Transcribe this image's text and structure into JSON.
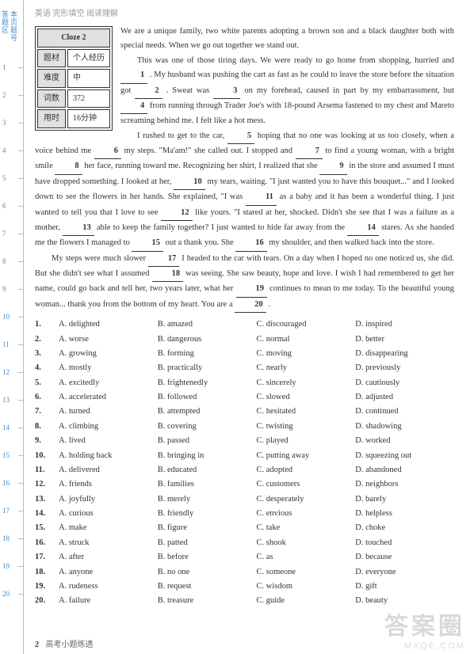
{
  "header": "英语 完形填空 阅读理解",
  "side": {
    "col1": {
      "a": "答",
      "b": "题",
      "c": "区"
    },
    "col2": {
      "a": "本",
      "b": "页",
      "c": "题",
      "d": "号"
    }
  },
  "ticks": [
    "1",
    "2",
    "3",
    "4",
    "5",
    "6",
    "7",
    "8",
    "9",
    "10",
    "11",
    "12",
    "13",
    "14",
    "15",
    "16",
    "17",
    "18",
    "19",
    "20"
  ],
  "info": {
    "title": "Cloze 2",
    "r1a": "题材",
    "r1b": "个人经历",
    "r2a": "难度",
    "r2b": "中",
    "r3a": "词数",
    "r3b": "372",
    "r4a": "用时",
    "r4b": "16分钟"
  },
  "passage": {
    "p1a": "We are a unique family, two white parents adopting a brown son and a black daughter both with special needs. When we go out together we stand out.",
    "p2a": "This was one of those tiring days. We were ready to go home from shopping, hurried and ",
    "p2b": " . My husband was pushing the cart as fast as he could to leave the store before the situation got ",
    "p2c": " . Sweat was ",
    "p2d": "  on my forehead, caused in part by my embarrassment, but ",
    "p2e": "  from running through Trader Joe's with 18-pound Arsema fastened to my chest and Mareto screaming behind me. I felt like a hot mess.",
    "p3a": "I rushed to get to the car, ",
    "p3b": "  hoping that no one was looking at us too closely, when a voice behind me ",
    "p3c": "  my steps. \"Ma'am!\" she called out. I stopped and ",
    "p3d": "  to find a young woman, with a bright smile ",
    "p3e": "  her face, running toward me. Recognizing her shirt, I realized that she ",
    "p3f": "  in the store and assumed I must have dropped something. I looked at her, ",
    "p3g": "  my tears, waiting. \"I just wanted you to have this bouquet...\" and I looked down to see the flowers in her hands. She explained, \"I was ",
    "p3h": "  as a baby and it has been a wonderful thing. I just wanted to tell you that I love to see ",
    "p3i": "  like yours. \"I stared at her, shocked. Didn't she see that I was a failure as a mother, ",
    "p3j": "  able to keep the family together? I just wanted to hide far away from the ",
    "p3k": "  stares. As she handed me the flowers I managed to ",
    "p3l": "  out a thank you. She ",
    "p3m": "  my shoulder, and then walked back into the store.",
    "p4a": "My steps were much slower ",
    "p4b": "  I headed to the car with tears. On a day when I hoped no one noticed us, she did. But she didn't see what I assumed ",
    "p4c": "  was seeing. She saw beauty, hope and love. I wish I had remembered to get her name, could go back and tell her, two years later, what her ",
    "p4d": "  continues to mean to me today. To the beautiful young woman... thank you from the bottom of my heart. You are a ",
    "p4e": " ."
  },
  "blanks": {
    "b1": "1",
    "b2": "2",
    "b3": "3",
    "b4": "4",
    "b5": "5",
    "b6": "6",
    "b7": "7",
    "b8": "8",
    "b9": "9",
    "b10": "10",
    "b11": "11",
    "b12": "12",
    "b13": "13",
    "b14": "14",
    "b15": "15",
    "b16": "16",
    "b17": "17",
    "b18": "18",
    "b19": "19",
    "b20": "20"
  },
  "choices": [
    {
      "n": "1.",
      "a": "A. delighted",
      "b": "B. amazed",
      "c": "C. discouraged",
      "d": "D. inspired"
    },
    {
      "n": "2.",
      "a": "A. worse",
      "b": "B. dangerous",
      "c": "C. normal",
      "d": "D. better"
    },
    {
      "n": "3.",
      "a": "A. growing",
      "b": "B. forming",
      "c": "C. moving",
      "d": "D. disappearing"
    },
    {
      "n": "4.",
      "a": "A. mostly",
      "b": "B. practically",
      "c": "C. nearly",
      "d": "D. previously"
    },
    {
      "n": "5.",
      "a": "A. excitedly",
      "b": "B. frightenedly",
      "c": "C. sincerely",
      "d": "D. cautiously"
    },
    {
      "n": "6.",
      "a": "A. accelerated",
      "b": "B. followed",
      "c": "C. slowed",
      "d": "D. adjusted"
    },
    {
      "n": "7.",
      "a": "A. turned",
      "b": "B. attempted",
      "c": "C. hesitated",
      "d": "D. continued"
    },
    {
      "n": "8.",
      "a": "A. climbing",
      "b": "B. covering",
      "c": "C. twisting",
      "d": "D. shadowing"
    },
    {
      "n": "9.",
      "a": "A. lived",
      "b": "B. passed",
      "c": "C. played",
      "d": "D. worked"
    },
    {
      "n": "10.",
      "a": "A. holding back",
      "b": "B. bringing in",
      "c": "C. putting away",
      "d": "D. squeezing out"
    },
    {
      "n": "11.",
      "a": "A. delivered",
      "b": "B. educated",
      "c": "C. adopted",
      "d": "D. abandoned"
    },
    {
      "n": "12.",
      "a": "A. friends",
      "b": "B. families",
      "c": "C. customers",
      "d": "D. neighbors"
    },
    {
      "n": "13.",
      "a": "A. joyfully",
      "b": "B. merely",
      "c": "C. desperately",
      "d": "D. barely"
    },
    {
      "n": "14.",
      "a": "A. curious",
      "b": "B. friendly",
      "c": "C. envious",
      "d": "D. helpless"
    },
    {
      "n": "15.",
      "a": "A. make",
      "b": "B. figure",
      "c": "C. take",
      "d": "D. choke"
    },
    {
      "n": "16.",
      "a": "A. struck",
      "b": "B. patted",
      "c": "C. shook",
      "d": "D. touched"
    },
    {
      "n": "17.",
      "a": "A. after",
      "b": "B. before",
      "c": "C. as",
      "d": "D. because"
    },
    {
      "n": "18.",
      "a": "A. anyone",
      "b": "B. no one",
      "c": "C. someone",
      "d": "D. everyone"
    },
    {
      "n": "19.",
      "a": "A. rudeness",
      "b": "B. request",
      "c": "C. wisdom",
      "d": "D. gift"
    },
    {
      "n": "20.",
      "a": "A. failure",
      "b": "B. treasure",
      "c": "C. guide",
      "d": "D. beauty"
    }
  ],
  "footer": {
    "page": "2",
    "title": "高考小题练透"
  },
  "watermark": {
    "big": "答案圈",
    "small": "MXQE.COM"
  }
}
